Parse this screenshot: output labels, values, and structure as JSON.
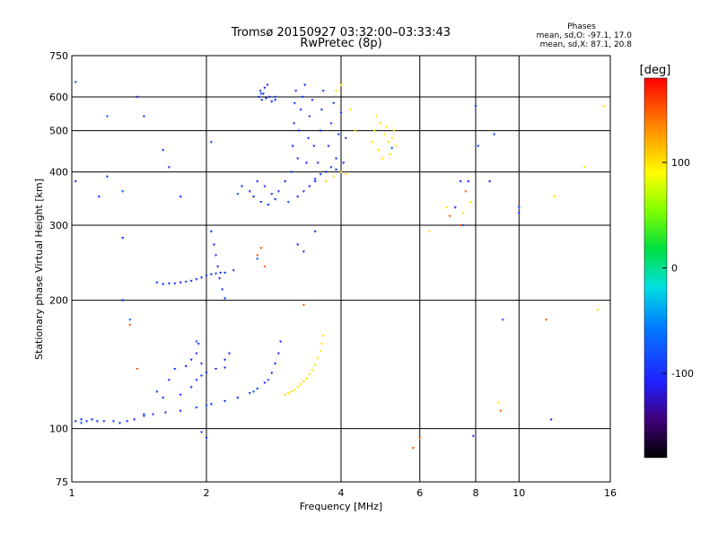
{
  "title": {
    "line1": "Tromsø 20150927 03:32:00–03:33:43",
    "line2": "RwPretec (8p)"
  },
  "stats": {
    "heading": "Phases",
    "line_o": "mean, sd,O: -97.1, 17.0",
    "line_x": "mean, sd,X:  87.1, 20.8"
  },
  "chart_data": {
    "type": "scatter",
    "xlabel": "Frequency [MHz]",
    "ylabel": "Stationary phase Virtual Height [km]",
    "x_scale": "log",
    "y_scale": "log",
    "xlim": [
      1,
      16
    ],
    "ylim": [
      75,
      750
    ],
    "x_ticks": [
      {
        "value": 1,
        "label": "1"
      },
      {
        "value": 2,
        "label": "2"
      },
      {
        "value": 4,
        "label": "4"
      },
      {
        "value": 6,
        "label": "6"
      },
      {
        "value": 8,
        "label": "8"
      },
      {
        "value": 10,
        "label": "10"
      },
      {
        "value": 16,
        "label": "16"
      }
    ],
    "y_ticks": [
      {
        "value": 75,
        "label": "75"
      },
      {
        "value": 100,
        "label": "100"
      },
      {
        "value": 200,
        "label": "200"
      },
      {
        "value": 300,
        "label": "300"
      },
      {
        "value": 400,
        "label": "400"
      },
      {
        "value": 500,
        "label": "500"
      },
      {
        "value": 600,
        "label": "600"
      },
      {
        "value": 750,
        "label": "750"
      }
    ],
    "grid": true,
    "colorbar": {
      "label": "[deg]",
      "range": [
        -180,
        180
      ],
      "ticks": [
        {
          "value": 100,
          "label": "100"
        },
        {
          "value": 0,
          "label": "0"
        },
        {
          "value": -100,
          "label": "-100"
        }
      ]
    },
    "series": [
      {
        "mode": "O",
        "phase": -100,
        "points": [
          [
            1.02,
            104
          ],
          [
            1.05,
            105
          ],
          [
            1.08,
            104
          ],
          [
            1.11,
            105
          ],
          [
            1.14,
            104
          ],
          [
            1.18,
            104
          ],
          [
            1.24,
            104
          ],
          [
            1.28,
            103
          ],
          [
            1.33,
            104
          ],
          [
            1.38,
            105
          ],
          [
            1.45,
            107
          ],
          [
            1.52,
            108
          ],
          [
            1.62,
            109
          ],
          [
            1.75,
            110
          ],
          [
            1.9,
            112
          ],
          [
            2.05,
            114
          ],
          [
            2.2,
            116
          ],
          [
            2.35,
            118
          ],
          [
            2.5,
            121
          ],
          [
            2.6,
            124
          ],
          [
            2.7,
            128
          ],
          [
            2.8,
            135
          ],
          [
            2.85,
            142
          ],
          [
            2.9,
            150
          ],
          [
            2.93,
            160
          ],
          [
            1.6,
            118
          ],
          [
            1.75,
            120
          ],
          [
            1.85,
            125
          ],
          [
            1.9,
            130
          ],
          [
            1.95,
            133
          ],
          [
            2.0,
            135
          ],
          [
            2.1,
            138
          ],
          [
            2.2,
            139
          ],
          [
            1.8,
            140
          ],
          [
            1.85,
            145
          ],
          [
            1.9,
            150
          ],
          [
            1.92,
            158
          ],
          [
            1.95,
            142
          ],
          [
            1.7,
            138
          ],
          [
            1.65,
            130
          ],
          [
            1.55,
            122
          ],
          [
            1.55,
            220
          ],
          [
            1.6,
            218
          ],
          [
            1.65,
            219
          ],
          [
            1.7,
            219
          ],
          [
            1.75,
            220
          ],
          [
            1.8,
            221
          ],
          [
            1.85,
            222
          ],
          [
            1.9,
            224
          ],
          [
            1.95,
            226
          ],
          [
            2.0,
            228
          ],
          [
            2.05,
            230
          ],
          [
            2.1,
            231
          ],
          [
            2.15,
            232
          ],
          [
            2.2,
            232
          ],
          [
            2.3,
            235
          ],
          [
            2.05,
            290
          ],
          [
            2.08,
            270
          ],
          [
            2.1,
            255
          ],
          [
            2.12,
            240
          ],
          [
            2.14,
            225
          ],
          [
            2.17,
            212
          ],
          [
            2.2,
            202
          ],
          [
            2.62,
            600
          ],
          [
            2.64,
            620
          ],
          [
            2.66,
            590
          ],
          [
            2.68,
            610
          ],
          [
            2.7,
            630
          ],
          [
            2.72,
            595
          ],
          [
            2.74,
            640
          ],
          [
            2.77,
            600
          ],
          [
            2.8,
            585
          ],
          [
            2.85,
            590
          ],
          [
            2.4,
            370
          ],
          [
            2.5,
            360
          ],
          [
            2.55,
            350
          ],
          [
            2.6,
            380
          ],
          [
            2.65,
            340
          ],
          [
            2.7,
            370
          ],
          [
            2.75,
            335
          ],
          [
            2.8,
            355
          ],
          [
            2.85,
            345
          ],
          [
            2.9,
            360
          ],
          [
            3.0,
            380
          ],
          [
            3.1,
            400
          ],
          [
            3.12,
            460
          ],
          [
            3.14,
            520
          ],
          [
            3.15,
            580
          ],
          [
            3.17,
            620
          ],
          [
            3.2,
            430
          ],
          [
            3.22,
            500
          ],
          [
            3.25,
            560
          ],
          [
            3.28,
            600
          ],
          [
            3.32,
            640
          ],
          [
            3.35,
            420
          ],
          [
            3.38,
            480
          ],
          [
            3.4,
            540
          ],
          [
            3.45,
            590
          ],
          [
            3.48,
            460
          ],
          [
            3.5,
            380
          ],
          [
            3.55,
            420
          ],
          [
            3.6,
            500
          ],
          [
            3.62,
            560
          ],
          [
            3.65,
            620
          ],
          [
            3.7,
            400
          ],
          [
            3.75,
            460
          ],
          [
            3.8,
            520
          ],
          [
            3.85,
            580
          ],
          [
            3.9,
            430
          ],
          [
            3.95,
            490
          ],
          [
            4.0,
            550
          ],
          [
            4.05,
            420
          ],
          [
            4.1,
            480
          ],
          [
            3.2,
            350
          ],
          [
            3.3,
            360
          ],
          [
            3.4,
            370
          ],
          [
            3.5,
            385
          ],
          [
            3.6,
            395
          ],
          [
            3.7,
            400
          ],
          [
            3.8,
            410
          ],
          [
            3.9,
            405
          ],
          [
            4.0,
            400
          ],
          [
            1.02,
            380
          ],
          [
            1.15,
            350
          ],
          [
            1.2,
            390
          ],
          [
            1.3,
            200
          ],
          [
            1.3,
            280
          ],
          [
            1.4,
            600
          ],
          [
            1.45,
            540
          ],
          [
            1.6,
            450
          ],
          [
            1.65,
            410
          ],
          [
            1.75,
            350
          ],
          [
            1.95,
            98
          ],
          [
            2.0,
            95
          ],
          [
            2.0,
            135
          ],
          [
            2.05,
            470
          ],
          [
            2.2,
            145
          ],
          [
            2.25,
            150
          ],
          [
            3.2,
            270
          ],
          [
            3.3,
            260
          ],
          [
            3.5,
            290
          ],
          [
            7.2,
            330
          ],
          [
            7.4,
            380
          ],
          [
            7.7,
            380
          ],
          [
            8.0,
            570
          ],
          [
            8.1,
            460
          ],
          [
            8.6,
            380
          ],
          [
            8.8,
            490
          ],
          [
            10.0,
            320
          ],
          [
            11.8,
            105
          ],
          [
            7.9,
            96
          ]
        ]
      },
      {
        "mode": "O-edge",
        "phase": -80,
        "points": [
          [
            1.05,
            103
          ],
          [
            1.45,
            108
          ],
          [
            2.0,
            113
          ],
          [
            2.55,
            122
          ],
          [
            2.75,
            130
          ],
          [
            2.65,
            610
          ],
          [
            2.85,
            600
          ],
          [
            3.05,
            340
          ],
          [
            2.35,
            355
          ],
          [
            1.3,
            360
          ],
          [
            1.2,
            540
          ],
          [
            1.02,
            650
          ],
          [
            1.35,
            180
          ],
          [
            1.9,
            160
          ],
          [
            2.6,
            250
          ],
          [
            7.5,
            300
          ],
          [
            9.2,
            180
          ],
          [
            10.0,
            330
          ],
          [
            5.2,
            455
          ]
        ]
      },
      {
        "mode": "X",
        "phase": 100,
        "points": [
          [
            3.0,
            120
          ],
          [
            3.05,
            121
          ],
          [
            3.1,
            122
          ],
          [
            3.15,
            123
          ],
          [
            3.2,
            125
          ],
          [
            3.25,
            127
          ],
          [
            3.3,
            129
          ],
          [
            3.35,
            131
          ],
          [
            3.4,
            134
          ],
          [
            3.45,
            137
          ],
          [
            3.5,
            141
          ],
          [
            3.55,
            146
          ],
          [
            3.6,
            152
          ],
          [
            3.62,
            158
          ],
          [
            3.65,
            165
          ],
          [
            4.7,
            470
          ],
          [
            4.75,
            500
          ],
          [
            4.8,
            540
          ],
          [
            4.85,
            450
          ],
          [
            4.9,
            520
          ],
          [
            4.95,
            430
          ],
          [
            5.0,
            490
          ],
          [
            5.05,
            510
          ],
          [
            5.1,
            470
          ],
          [
            5.15,
            440
          ],
          [
            5.2,
            480
          ],
          [
            5.25,
            500
          ],
          [
            5.3,
            460
          ],
          [
            3.7,
            380
          ],
          [
            3.85,
            390
          ],
          [
            4.0,
            400
          ],
          [
            4.1,
            395
          ],
          [
            3.9,
            620
          ],
          [
            4.0,
            640
          ],
          [
            4.2,
            560
          ],
          [
            4.3,
            500
          ],
          [
            6.3,
            290
          ],
          [
            6.9,
            330
          ],
          [
            7.5,
            320
          ],
          [
            7.8,
            340
          ],
          [
            9.0,
            115
          ],
          [
            14.0,
            410
          ],
          [
            15.5,
            570
          ],
          [
            15.0,
            190
          ],
          [
            12.0,
            350
          ]
        ]
      },
      {
        "mode": "misc",
        "phase": 150,
        "points": [
          [
            2.6,
            255
          ],
          [
            2.65,
            265
          ],
          [
            2.7,
            240
          ],
          [
            3.3,
            195
          ],
          [
            5.8,
            90
          ],
          [
            6.0,
            95
          ],
          [
            7.0,
            315
          ],
          [
            7.4,
            300
          ],
          [
            7.6,
            360
          ],
          [
            9.1,
            110
          ],
          [
            11.5,
            180
          ],
          [
            1.35,
            175
          ],
          [
            1.4,
            138
          ]
        ]
      }
    ]
  }
}
